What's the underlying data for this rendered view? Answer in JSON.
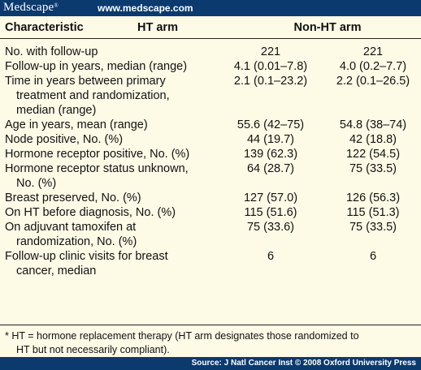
{
  "header": {
    "logo": "Medscape",
    "logo_mark": "®",
    "url": "www.medscape.com"
  },
  "table": {
    "columns": [
      "Characteristic",
      "HT arm",
      "Non-HT arm"
    ],
    "rows": [
      {
        "label": [
          "No. with follow-up"
        ],
        "ht": "221",
        "non_ht": "221"
      },
      {
        "label": [
          "Follow-up in years, median (range)"
        ],
        "ht": "4.1 (0.01–7.8)",
        "non_ht": "4.0 (0.2–7.7)"
      },
      {
        "label": [
          "Time in years between primary",
          "treatment and randomization,",
          "median (range)"
        ],
        "ht": "2.1 (0.1–23.2)",
        "non_ht": "2.2 (0.1–26.5)"
      },
      {
        "label": [
          "Age in years, mean (range)"
        ],
        "ht": "55.6 (42–75)",
        "non_ht": "54.8 (38–74)"
      },
      {
        "label": [
          "Node positive, No. (%)"
        ],
        "ht": "44 (19.7)",
        "non_ht": "42 (18.8)"
      },
      {
        "label": [
          "Hormone receptor positive, No. (%)"
        ],
        "ht": "139 (62.3)",
        "non_ht": "122 (54.5)"
      },
      {
        "label": [
          "Hormone receptor status unknown,",
          "No. (%)"
        ],
        "ht": "64 (28.7)",
        "non_ht": "75 (33.5)"
      },
      {
        "label": [
          "Breast preserved, No. (%)"
        ],
        "ht": "127 (57.0)",
        "non_ht": "126 (56.3)"
      },
      {
        "label": [
          "On HT before diagnosis, No. (%)"
        ],
        "ht": "115 (51.6)",
        "non_ht": "115 (51.3)"
      },
      {
        "label": [
          "On adjuvant tamoxifen at",
          "randomization, No. (%)"
        ],
        "ht": "75 (33.6)",
        "non_ht": "75 (33.5)"
      },
      {
        "label": [
          "Follow-up clinic visits for breast",
          "cancer, median"
        ],
        "ht": "6",
        "non_ht": "6"
      }
    ]
  },
  "footnote": {
    "line1": "*   HT = hormone replacement therapy (HT arm designates those randomized to",
    "line2": "HT but not necessarily compliant)."
  },
  "source": "Source: J Natl Cancer Inst © 2008 Oxford University Press"
}
